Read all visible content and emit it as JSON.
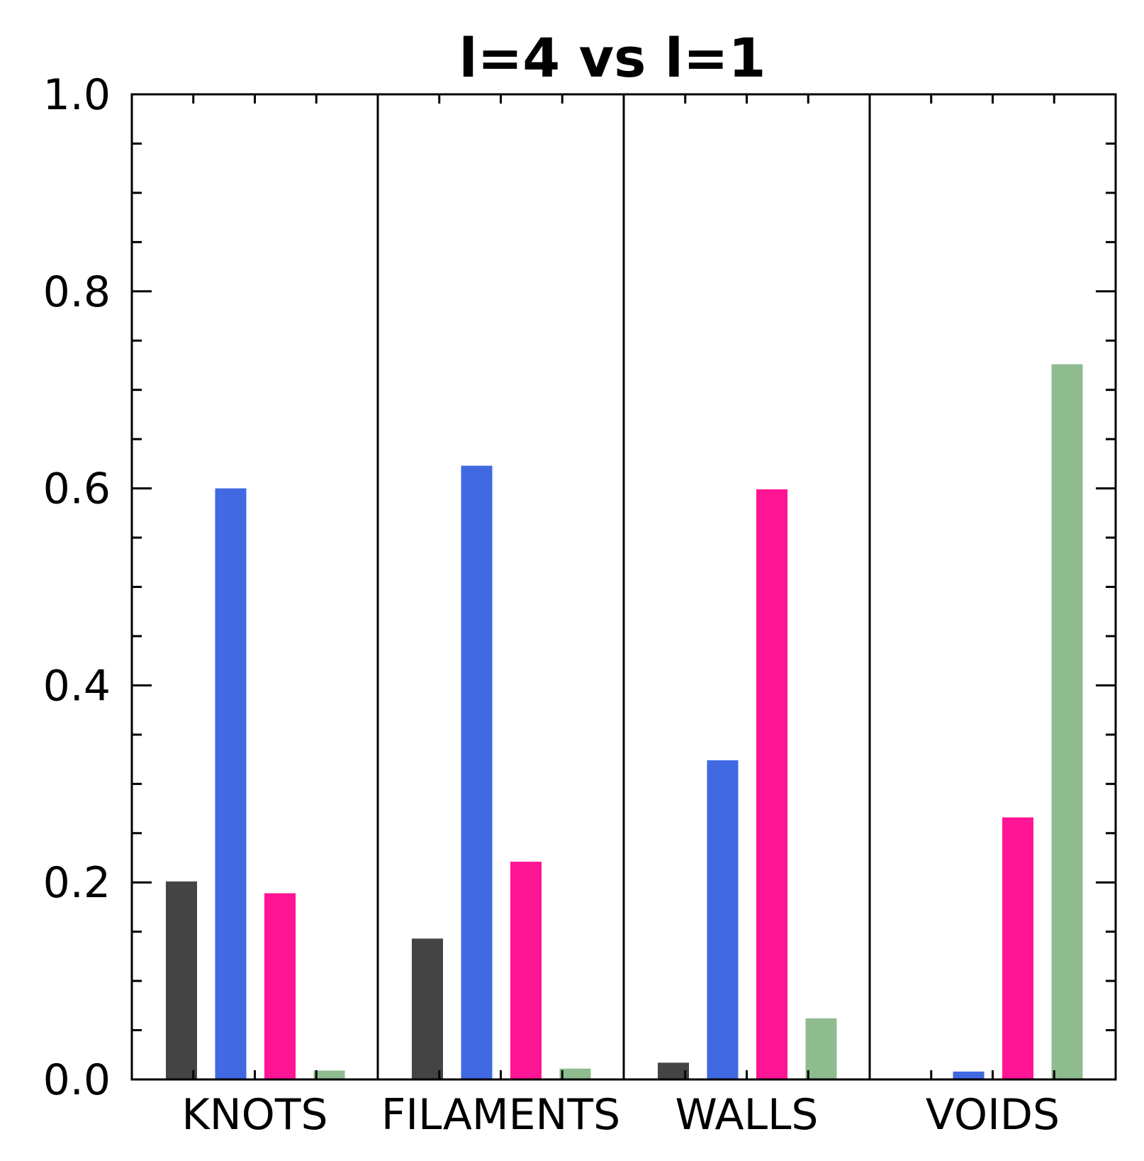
{
  "chart_data": {
    "type": "bar",
    "title": "l=4 vs l=1",
    "xlabel": "",
    "ylabel": "",
    "ylim": [
      0.0,
      1.0
    ],
    "yticks": [
      "0.0",
      "0.2",
      "0.4",
      "0.6",
      "0.8",
      "1.0"
    ],
    "y_minor_step": 0.05,
    "grid": false,
    "categories": [
      "KNOTS",
      "FILAMENTS",
      "WALLS",
      "VOIDS"
    ],
    "series": [
      {
        "color": "#444444",
        "values": [
          0.201,
          0.143,
          0.017,
          0.0
        ]
      },
      {
        "color": "#4169E1",
        "values": [
          0.6,
          0.623,
          0.324,
          0.008
        ]
      },
      {
        "color": "#FF1493",
        "values": [
          0.189,
          0.221,
          0.599,
          0.266
        ]
      },
      {
        "color": "#8FBC8F",
        "values": [
          0.009,
          0.011,
          0.062,
          0.726
        ]
      }
    ]
  }
}
